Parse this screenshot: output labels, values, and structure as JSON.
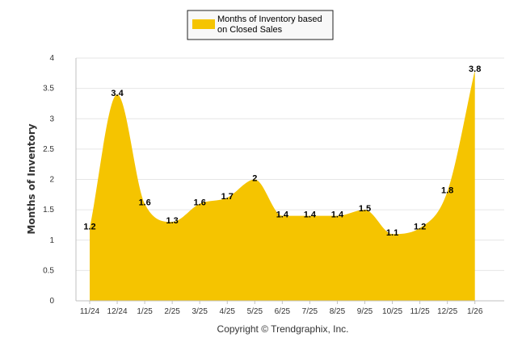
{
  "chart_data": {
    "type": "area",
    "title": "",
    "xlabel": "",
    "ylabel": "Months of Inventory",
    "ylim": [
      0,
      4
    ],
    "yticks": [
      "0",
      "0.5",
      "1",
      "1.5",
      "2",
      "2.5",
      "3",
      "3.5",
      "4"
    ],
    "ytick_values": [
      0,
      0.5,
      1,
      1.5,
      2,
      2.5,
      3,
      3.5,
      4
    ],
    "categories": [
      "11/24",
      "12/24",
      "1/25",
      "2/25",
      "3/25",
      "4/25",
      "5/25",
      "6/25",
      "7/25",
      "8/25",
      "9/25",
      "10/25",
      "11/25",
      "12/25",
      "1/26"
    ],
    "series": [
      {
        "name": "Months of Inventory based on Closed Sales",
        "color": "#F5C400",
        "values": [
          1.2,
          3.4,
          1.6,
          1.3,
          1.6,
          1.7,
          2,
          1.4,
          1.4,
          1.4,
          1.5,
          1.1,
          1.2,
          1.8,
          3.8
        ],
        "labels": [
          "1.2",
          "3.4",
          "1.6",
          "1.3",
          "1.6",
          "1.7",
          "2",
          "1.4",
          "1.4",
          "1.4",
          "1.5",
          "1.1",
          "1.2",
          "1.8",
          "3.8"
        ]
      }
    ],
    "grid": true,
    "legend_position": "top-center"
  },
  "legend": {
    "line1": "Months of Inventory based",
    "line2": "on Closed Sales"
  },
  "footer": {
    "copyright": "Copyright © Trendgraphix, Inc."
  }
}
